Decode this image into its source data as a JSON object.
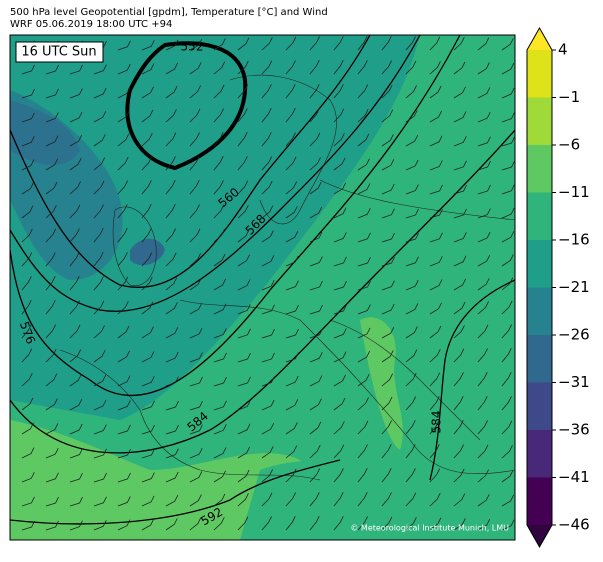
{
  "header": {
    "line1": "500 hPa level Geopotential [gpdm], Temperature [°C] and Wind",
    "line2": "WRF 05.06.2019 18:00 UTC +94"
  },
  "map": {
    "time_label": "16 UTC Sun",
    "contour_labels": [
      "552",
      "560",
      "568",
      "576",
      "584",
      "584",
      "592"
    ],
    "credit": "© Meteorological Institute Munich, LMU"
  },
  "colorbar": {
    "lim": [
      -46,
      4
    ],
    "ticks": [
      {
        "value": -46,
        "label": "−46"
      },
      {
        "value": -41,
        "label": "−41"
      },
      {
        "value": -36,
        "label": "−36"
      },
      {
        "value": -31,
        "label": "−31"
      },
      {
        "value": -26,
        "label": "−26"
      },
      {
        "value": -21,
        "label": "−21"
      },
      {
        "value": -16,
        "label": "−16"
      },
      {
        "value": -11,
        "label": "−11"
      },
      {
        "value": -6,
        "label": "−6"
      },
      {
        "value": -1,
        "label": "−1"
      },
      4
    ],
    "colors": [
      "#440154",
      "#482878",
      "#3e4989",
      "#31688e",
      "#26828e",
      "#1f9e89",
      "#2fb47c",
      "#5ec962",
      "#a0da39",
      "#dde318"
    ],
    "extend_colors": [
      "#30043f",
      "#fde725"
    ]
  }
}
